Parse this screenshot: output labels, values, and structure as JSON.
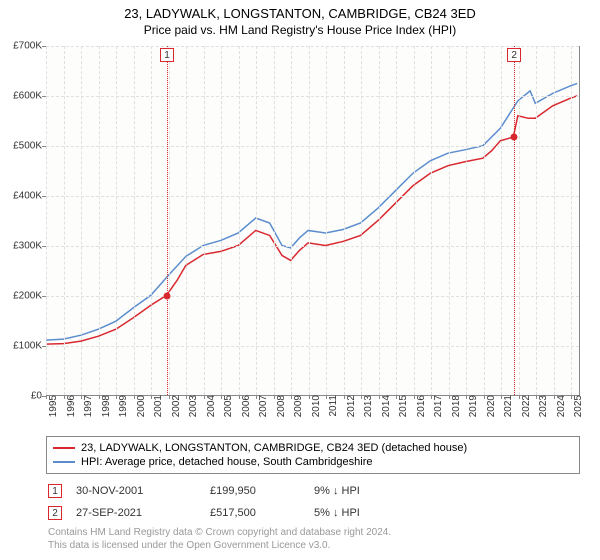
{
  "title": "23, LADYWALK, LONGSTANTON, CAMBRIDGE, CB24 3ED",
  "subtitle": "Price paid vs. HM Land Registry's House Price Index (HPI)",
  "chart": {
    "type": "line",
    "background_color": "#fdfdfc",
    "grid_color": "#e0e0e0",
    "axis_color": "#888888",
    "xlim": [
      1995,
      2025.5
    ],
    "ylim": [
      0,
      700000
    ],
    "ytick_step": 100000,
    "yticks_labels": [
      "£0",
      "£100K",
      "£200K",
      "£300K",
      "£400K",
      "£500K",
      "£600K",
      "£700K"
    ],
    "xticks": [
      1995,
      1996,
      1997,
      1998,
      1999,
      2000,
      2001,
      2002,
      2003,
      2004,
      2005,
      2006,
      2007,
      2008,
      2009,
      2010,
      2011,
      2012,
      2013,
      2014,
      2015,
      2016,
      2017,
      2018,
      2019,
      2020,
      2021,
      2022,
      2023,
      2024,
      2025
    ],
    "series": [
      {
        "name": "property",
        "label": "23, LADYWALK, LONGSTANTON, CAMBRIDGE, CB24 3ED (detached house)",
        "color": "#d9272e",
        "line_width": 1.5,
        "x": [
          1995,
          1996,
          1997,
          1998,
          1999,
          2000,
          2001,
          2001.9,
          2002.5,
          2003,
          2004,
          2005,
          2006,
          2007,
          2007.8,
          2008.5,
          2009,
          2009.5,
          2010,
          2011,
          2012,
          2013,
          2014,
          2015,
          2016,
          2017,
          2018,
          2019,
          2020,
          2020.5,
          2021,
          2021.74,
          2022,
          2022.6,
          2023,
          2024,
          2025,
          2025.4
        ],
        "y": [
          102000,
          103000,
          108000,
          118000,
          132000,
          155000,
          180000,
          199950,
          230000,
          260000,
          282000,
          288000,
          300000,
          330000,
          320000,
          280000,
          270000,
          290000,
          305000,
          300000,
          308000,
          320000,
          350000,
          385000,
          420000,
          445000,
          460000,
          468000,
          475000,
          490000,
          510000,
          517500,
          560000,
          555000,
          555000,
          580000,
          595000,
          600000
        ]
      },
      {
        "name": "hpi",
        "label": "HPI: Average price, detached house, South Cambridgeshire",
        "color": "#5b8dce",
        "line_width": 1.5,
        "x": [
          1995,
          1996,
          1997,
          1998,
          1999,
          2000,
          2001,
          2002,
          2003,
          2004,
          2005,
          2006,
          2007,
          2007.8,
          2008.5,
          2009,
          2009.5,
          2010,
          2011,
          2012,
          2013,
          2014,
          2015,
          2016,
          2017,
          2018,
          2019,
          2020,
          2021,
          2022,
          2022.7,
          2023,
          2024,
          2025,
          2025.4
        ],
        "y": [
          110000,
          112000,
          120000,
          132000,
          148000,
          175000,
          200000,
          240000,
          278000,
          300000,
          310000,
          325000,
          355000,
          345000,
          300000,
          295000,
          315000,
          330000,
          325000,
          332000,
          345000,
          375000,
          410000,
          445000,
          470000,
          485000,
          492000,
          500000,
          535000,
          590000,
          610000,
          585000,
          605000,
          620000,
          625000
        ]
      }
    ],
    "markers": [
      {
        "num": "1",
        "x": 2001.91,
        "y": 199950,
        "color": "#d9272e",
        "date": "30-NOV-2001",
        "price": "£199,950",
        "diff": "9% ↓ HPI"
      },
      {
        "num": "2",
        "x": 2021.74,
        "y": 517500,
        "color": "#d9272e",
        "date": "27-SEP-2021",
        "price": "£517,500",
        "diff": "5% ↓ HPI"
      }
    ]
  },
  "footer": {
    "line1": "Contains HM Land Registry data © Crown copyright and database right 2024.",
    "line2": "This data is licensed under the Open Government Licence v3.0."
  }
}
